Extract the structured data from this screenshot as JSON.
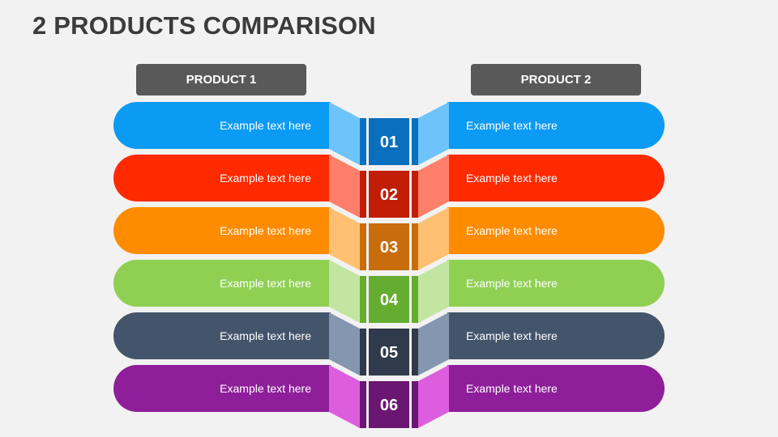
{
  "title": "2 PRODUCTS COMPARISON",
  "headers": {
    "left": "PRODUCT 1",
    "right": "PRODUCT 2"
  },
  "rows": [
    {
      "number": "01",
      "left_text": "Example text here",
      "right_text": "Example text here",
      "color": "#0b9bf5",
      "light": "#6ec3fb",
      "dark": "#0a6fbd"
    },
    {
      "number": "02",
      "left_text": "Example text here",
      "right_text": "Example text here",
      "color": "#ff2a00",
      "light": "#ff7f6a",
      "dark": "#c21d05"
    },
    {
      "number": "03",
      "left_text": "Example text here",
      "right_text": "Example text here",
      "color": "#ff8c00",
      "light": "#ffc071",
      "dark": "#c96d0c"
    },
    {
      "number": "04",
      "left_text": "Example text here",
      "right_text": "Example text here",
      "color": "#8fd053",
      "light": "#c2e6a1",
      "dark": "#64ad30"
    },
    {
      "number": "05",
      "left_text": "Example text here",
      "right_text": "Example text here",
      "color": "#44546a",
      "light": "#8496b0",
      "dark": "#2f3a4a"
    },
    {
      "number": "06",
      "left_text": "Example text here",
      "right_text": "Example text here",
      "color": "#8e1e99",
      "light": "#dc5ede",
      "dark": "#6a1672"
    }
  ]
}
